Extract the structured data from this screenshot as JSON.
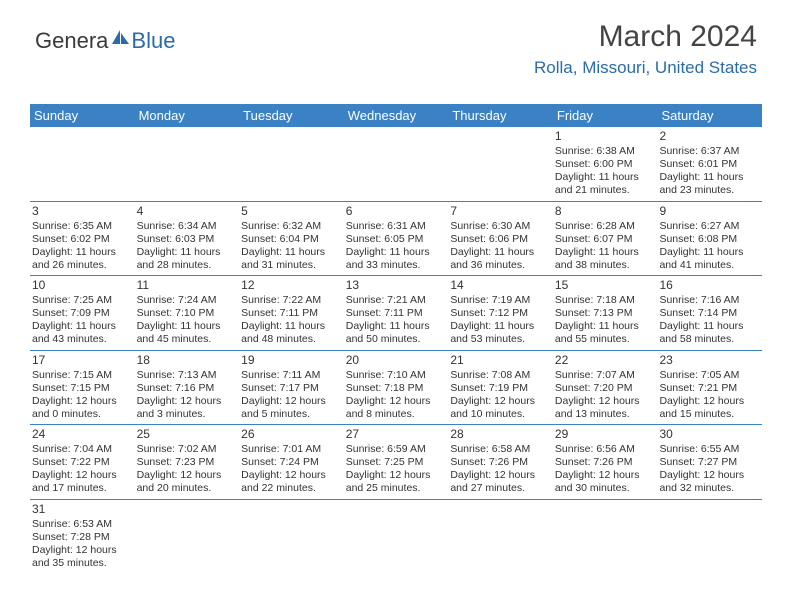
{
  "logo": {
    "part1": "Genera",
    "part2": "Blue"
  },
  "header": {
    "title": "March 2024",
    "location": "Rolla, Missouri, United States"
  },
  "colors": {
    "header_bg": "#3b82c4",
    "header_text": "#ffffff",
    "accent": "#2b6ca8",
    "body_text": "#333333",
    "rule": "#3b82c4",
    "background": "#ffffff"
  },
  "calendar": {
    "type": "table",
    "day_names": [
      "Sunday",
      "Monday",
      "Tuesday",
      "Wednesday",
      "Thursday",
      "Friday",
      "Saturday"
    ],
    "weeks": [
      [
        null,
        null,
        null,
        null,
        null,
        {
          "n": "1",
          "sr": "Sunrise: 6:38 AM",
          "ss": "Sunset: 6:00 PM",
          "d1": "Daylight: 11 hours",
          "d2": "and 21 minutes."
        },
        {
          "n": "2",
          "sr": "Sunrise: 6:37 AM",
          "ss": "Sunset: 6:01 PM",
          "d1": "Daylight: 11 hours",
          "d2": "and 23 minutes."
        }
      ],
      [
        {
          "n": "3",
          "sr": "Sunrise: 6:35 AM",
          "ss": "Sunset: 6:02 PM",
          "d1": "Daylight: 11 hours",
          "d2": "and 26 minutes."
        },
        {
          "n": "4",
          "sr": "Sunrise: 6:34 AM",
          "ss": "Sunset: 6:03 PM",
          "d1": "Daylight: 11 hours",
          "d2": "and 28 minutes."
        },
        {
          "n": "5",
          "sr": "Sunrise: 6:32 AM",
          "ss": "Sunset: 6:04 PM",
          "d1": "Daylight: 11 hours",
          "d2": "and 31 minutes."
        },
        {
          "n": "6",
          "sr": "Sunrise: 6:31 AM",
          "ss": "Sunset: 6:05 PM",
          "d1": "Daylight: 11 hours",
          "d2": "and 33 minutes."
        },
        {
          "n": "7",
          "sr": "Sunrise: 6:30 AM",
          "ss": "Sunset: 6:06 PM",
          "d1": "Daylight: 11 hours",
          "d2": "and 36 minutes."
        },
        {
          "n": "8",
          "sr": "Sunrise: 6:28 AM",
          "ss": "Sunset: 6:07 PM",
          "d1": "Daylight: 11 hours",
          "d2": "and 38 minutes."
        },
        {
          "n": "9",
          "sr": "Sunrise: 6:27 AM",
          "ss": "Sunset: 6:08 PM",
          "d1": "Daylight: 11 hours",
          "d2": "and 41 minutes."
        }
      ],
      [
        {
          "n": "10",
          "sr": "Sunrise: 7:25 AM",
          "ss": "Sunset: 7:09 PM",
          "d1": "Daylight: 11 hours",
          "d2": "and 43 minutes."
        },
        {
          "n": "11",
          "sr": "Sunrise: 7:24 AM",
          "ss": "Sunset: 7:10 PM",
          "d1": "Daylight: 11 hours",
          "d2": "and 45 minutes."
        },
        {
          "n": "12",
          "sr": "Sunrise: 7:22 AM",
          "ss": "Sunset: 7:11 PM",
          "d1": "Daylight: 11 hours",
          "d2": "and 48 minutes."
        },
        {
          "n": "13",
          "sr": "Sunrise: 7:21 AM",
          "ss": "Sunset: 7:11 PM",
          "d1": "Daylight: 11 hours",
          "d2": "and 50 minutes."
        },
        {
          "n": "14",
          "sr": "Sunrise: 7:19 AM",
          "ss": "Sunset: 7:12 PM",
          "d1": "Daylight: 11 hours",
          "d2": "and 53 minutes."
        },
        {
          "n": "15",
          "sr": "Sunrise: 7:18 AM",
          "ss": "Sunset: 7:13 PM",
          "d1": "Daylight: 11 hours",
          "d2": "and 55 minutes."
        },
        {
          "n": "16",
          "sr": "Sunrise: 7:16 AM",
          "ss": "Sunset: 7:14 PM",
          "d1": "Daylight: 11 hours",
          "d2": "and 58 minutes."
        }
      ],
      [
        {
          "n": "17",
          "sr": "Sunrise: 7:15 AM",
          "ss": "Sunset: 7:15 PM",
          "d1": "Daylight: 12 hours",
          "d2": "and 0 minutes."
        },
        {
          "n": "18",
          "sr": "Sunrise: 7:13 AM",
          "ss": "Sunset: 7:16 PM",
          "d1": "Daylight: 12 hours",
          "d2": "and 3 minutes."
        },
        {
          "n": "19",
          "sr": "Sunrise: 7:11 AM",
          "ss": "Sunset: 7:17 PM",
          "d1": "Daylight: 12 hours",
          "d2": "and 5 minutes."
        },
        {
          "n": "20",
          "sr": "Sunrise: 7:10 AM",
          "ss": "Sunset: 7:18 PM",
          "d1": "Daylight: 12 hours",
          "d2": "and 8 minutes."
        },
        {
          "n": "21",
          "sr": "Sunrise: 7:08 AM",
          "ss": "Sunset: 7:19 PM",
          "d1": "Daylight: 12 hours",
          "d2": "and 10 minutes."
        },
        {
          "n": "22",
          "sr": "Sunrise: 7:07 AM",
          "ss": "Sunset: 7:20 PM",
          "d1": "Daylight: 12 hours",
          "d2": "and 13 minutes."
        },
        {
          "n": "23",
          "sr": "Sunrise: 7:05 AM",
          "ss": "Sunset: 7:21 PM",
          "d1": "Daylight: 12 hours",
          "d2": "and 15 minutes."
        }
      ],
      [
        {
          "n": "24",
          "sr": "Sunrise: 7:04 AM",
          "ss": "Sunset: 7:22 PM",
          "d1": "Daylight: 12 hours",
          "d2": "and 17 minutes."
        },
        {
          "n": "25",
          "sr": "Sunrise: 7:02 AM",
          "ss": "Sunset: 7:23 PM",
          "d1": "Daylight: 12 hours",
          "d2": "and 20 minutes."
        },
        {
          "n": "26",
          "sr": "Sunrise: 7:01 AM",
          "ss": "Sunset: 7:24 PM",
          "d1": "Daylight: 12 hours",
          "d2": "and 22 minutes."
        },
        {
          "n": "27",
          "sr": "Sunrise: 6:59 AM",
          "ss": "Sunset: 7:25 PM",
          "d1": "Daylight: 12 hours",
          "d2": "and 25 minutes."
        },
        {
          "n": "28",
          "sr": "Sunrise: 6:58 AM",
          "ss": "Sunset: 7:26 PM",
          "d1": "Daylight: 12 hours",
          "d2": "and 27 minutes."
        },
        {
          "n": "29",
          "sr": "Sunrise: 6:56 AM",
          "ss": "Sunset: 7:26 PM",
          "d1": "Daylight: 12 hours",
          "d2": "and 30 minutes."
        },
        {
          "n": "30",
          "sr": "Sunrise: 6:55 AM",
          "ss": "Sunset: 7:27 PM",
          "d1": "Daylight: 12 hours",
          "d2": "and 32 minutes."
        }
      ],
      [
        {
          "n": "31",
          "sr": "Sunrise: 6:53 AM",
          "ss": "Sunset: 7:28 PM",
          "d1": "Daylight: 12 hours",
          "d2": "and 35 minutes."
        },
        null,
        null,
        null,
        null,
        null,
        null
      ]
    ]
  }
}
